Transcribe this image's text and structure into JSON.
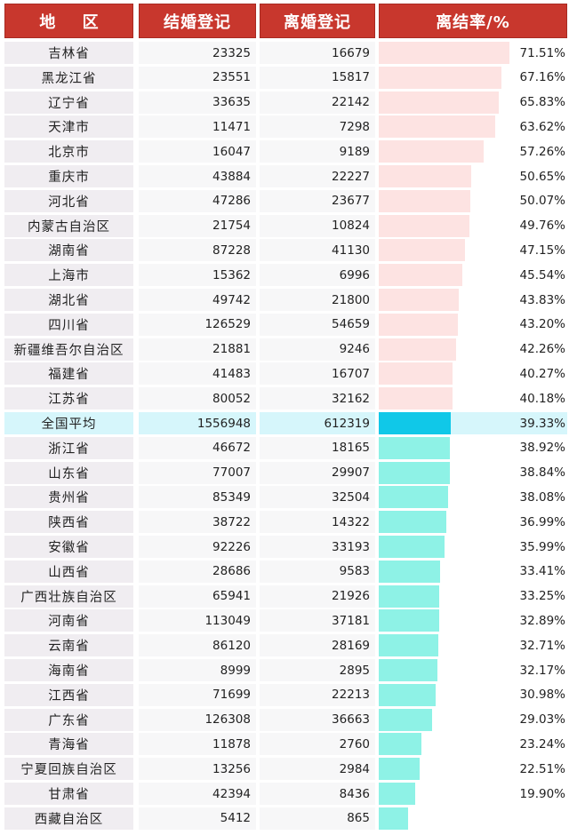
{
  "headers": {
    "region": "地 区",
    "marriage": "结婚登记",
    "divorce": "离婚登记",
    "rate": "离结率/%"
  },
  "colors": {
    "above_avg_bar": "#fde3e2",
    "average_bar": "#10c8e8",
    "below_avg_bar": "#8ef2e6",
    "average_row_bg": "#d6f6fb",
    "header_bg": "#c8372d"
  },
  "chart_data": {
    "type": "table",
    "columns": [
      "地 区",
      "结婚登记",
      "离婚登记",
      "离结率/%"
    ],
    "average_region": "全国平均",
    "rows": [
      {
        "region": "吉林省",
        "marriage": "23325",
        "divorce": "16679",
        "rate": 71.51,
        "rate_label": "71.51%"
      },
      {
        "region": "黑龙江省",
        "marriage": "23551",
        "divorce": "15817",
        "rate": 67.16,
        "rate_label": "67.16%"
      },
      {
        "region": "辽宁省",
        "marriage": "33635",
        "divorce": "22142",
        "rate": 65.83,
        "rate_label": "65.83%"
      },
      {
        "region": "天津市",
        "marriage": "11471",
        "divorce": "7298",
        "rate": 63.62,
        "rate_label": "63.62%"
      },
      {
        "region": "北京市",
        "marriage": "16047",
        "divorce": "9189",
        "rate": 57.26,
        "rate_label": "57.26%"
      },
      {
        "region": "重庆市",
        "marriage": "43884",
        "divorce": "22227",
        "rate": 50.65,
        "rate_label": "50.65%"
      },
      {
        "region": "河北省",
        "marriage": "47286",
        "divorce": "23677",
        "rate": 50.07,
        "rate_label": "50.07%"
      },
      {
        "region": "内蒙古自治区",
        "marriage": "21754",
        "divorce": "10824",
        "rate": 49.76,
        "rate_label": "49.76%"
      },
      {
        "region": "湖南省",
        "marriage": "87228",
        "divorce": "41130",
        "rate": 47.15,
        "rate_label": "47.15%"
      },
      {
        "region": "上海市",
        "marriage": "15362",
        "divorce": "6996",
        "rate": 45.54,
        "rate_label": "45.54%"
      },
      {
        "region": "湖北省",
        "marriage": "49742",
        "divorce": "21800",
        "rate": 43.83,
        "rate_label": "43.83%"
      },
      {
        "region": "四川省",
        "marriage": "126529",
        "divorce": "54659",
        "rate": 43.2,
        "rate_label": "43.20%"
      },
      {
        "region": "新疆维吾尔自治区",
        "marriage": "21881",
        "divorce": "9246",
        "rate": 42.26,
        "rate_label": "42.26%"
      },
      {
        "region": "福建省",
        "marriage": "41483",
        "divorce": "16707",
        "rate": 40.27,
        "rate_label": "40.27%"
      },
      {
        "region": "江苏省",
        "marriage": "80052",
        "divorce": "32162",
        "rate": 40.18,
        "rate_label": "40.18%"
      },
      {
        "region": "全国平均",
        "marriage": "1556948",
        "divorce": "612319",
        "rate": 39.33,
        "rate_label": "39.33%"
      },
      {
        "region": "浙江省",
        "marriage": "46672",
        "divorce": "18165",
        "rate": 38.92,
        "rate_label": "38.92%"
      },
      {
        "region": "山东省",
        "marriage": "77007",
        "divorce": "29907",
        "rate": 38.84,
        "rate_label": "38.84%"
      },
      {
        "region": "贵州省",
        "marriage": "85349",
        "divorce": "32504",
        "rate": 38.08,
        "rate_label": "38.08%"
      },
      {
        "region": "陕西省",
        "marriage": "38722",
        "divorce": "14322",
        "rate": 36.99,
        "rate_label": "36.99%"
      },
      {
        "region": "安徽省",
        "marriage": "92226",
        "divorce": "33193",
        "rate": 35.99,
        "rate_label": "35.99%"
      },
      {
        "region": "山西省",
        "marriage": "28686",
        "divorce": "9583",
        "rate": 33.41,
        "rate_label": "33.41%"
      },
      {
        "region": "广西壮族自治区",
        "marriage": "65941",
        "divorce": "21926",
        "rate": 33.25,
        "rate_label": "33.25%"
      },
      {
        "region": "河南省",
        "marriage": "113049",
        "divorce": "37181",
        "rate": 32.89,
        "rate_label": "32.89%"
      },
      {
        "region": "云南省",
        "marriage": "86120",
        "divorce": "28169",
        "rate": 32.71,
        "rate_label": "32.71%"
      },
      {
        "region": "海南省",
        "marriage": "8999",
        "divorce": "2895",
        "rate": 32.17,
        "rate_label": "32.17%"
      },
      {
        "region": "江西省",
        "marriage": "71699",
        "divorce": "22213",
        "rate": 30.98,
        "rate_label": "30.98%"
      },
      {
        "region": "广东省",
        "marriage": "126308",
        "divorce": "36663",
        "rate": 29.03,
        "rate_label": "29.03%"
      },
      {
        "region": "青海省",
        "marriage": "11878",
        "divorce": "2760",
        "rate": 23.24,
        "rate_label": "23.24%"
      },
      {
        "region": "宁夏回族自治区",
        "marriage": "13256",
        "divorce": "2984",
        "rate": 22.51,
        "rate_label": "22.51%"
      },
      {
        "region": "甘肃省",
        "marriage": "42394",
        "divorce": "8436",
        "rate": 19.9,
        "rate_label": "19.90%"
      },
      {
        "region": "西藏自治区",
        "marriage": "5412",
        "divorce": "865",
        "rate": 15.98,
        "rate_label": ""
      }
    ]
  }
}
